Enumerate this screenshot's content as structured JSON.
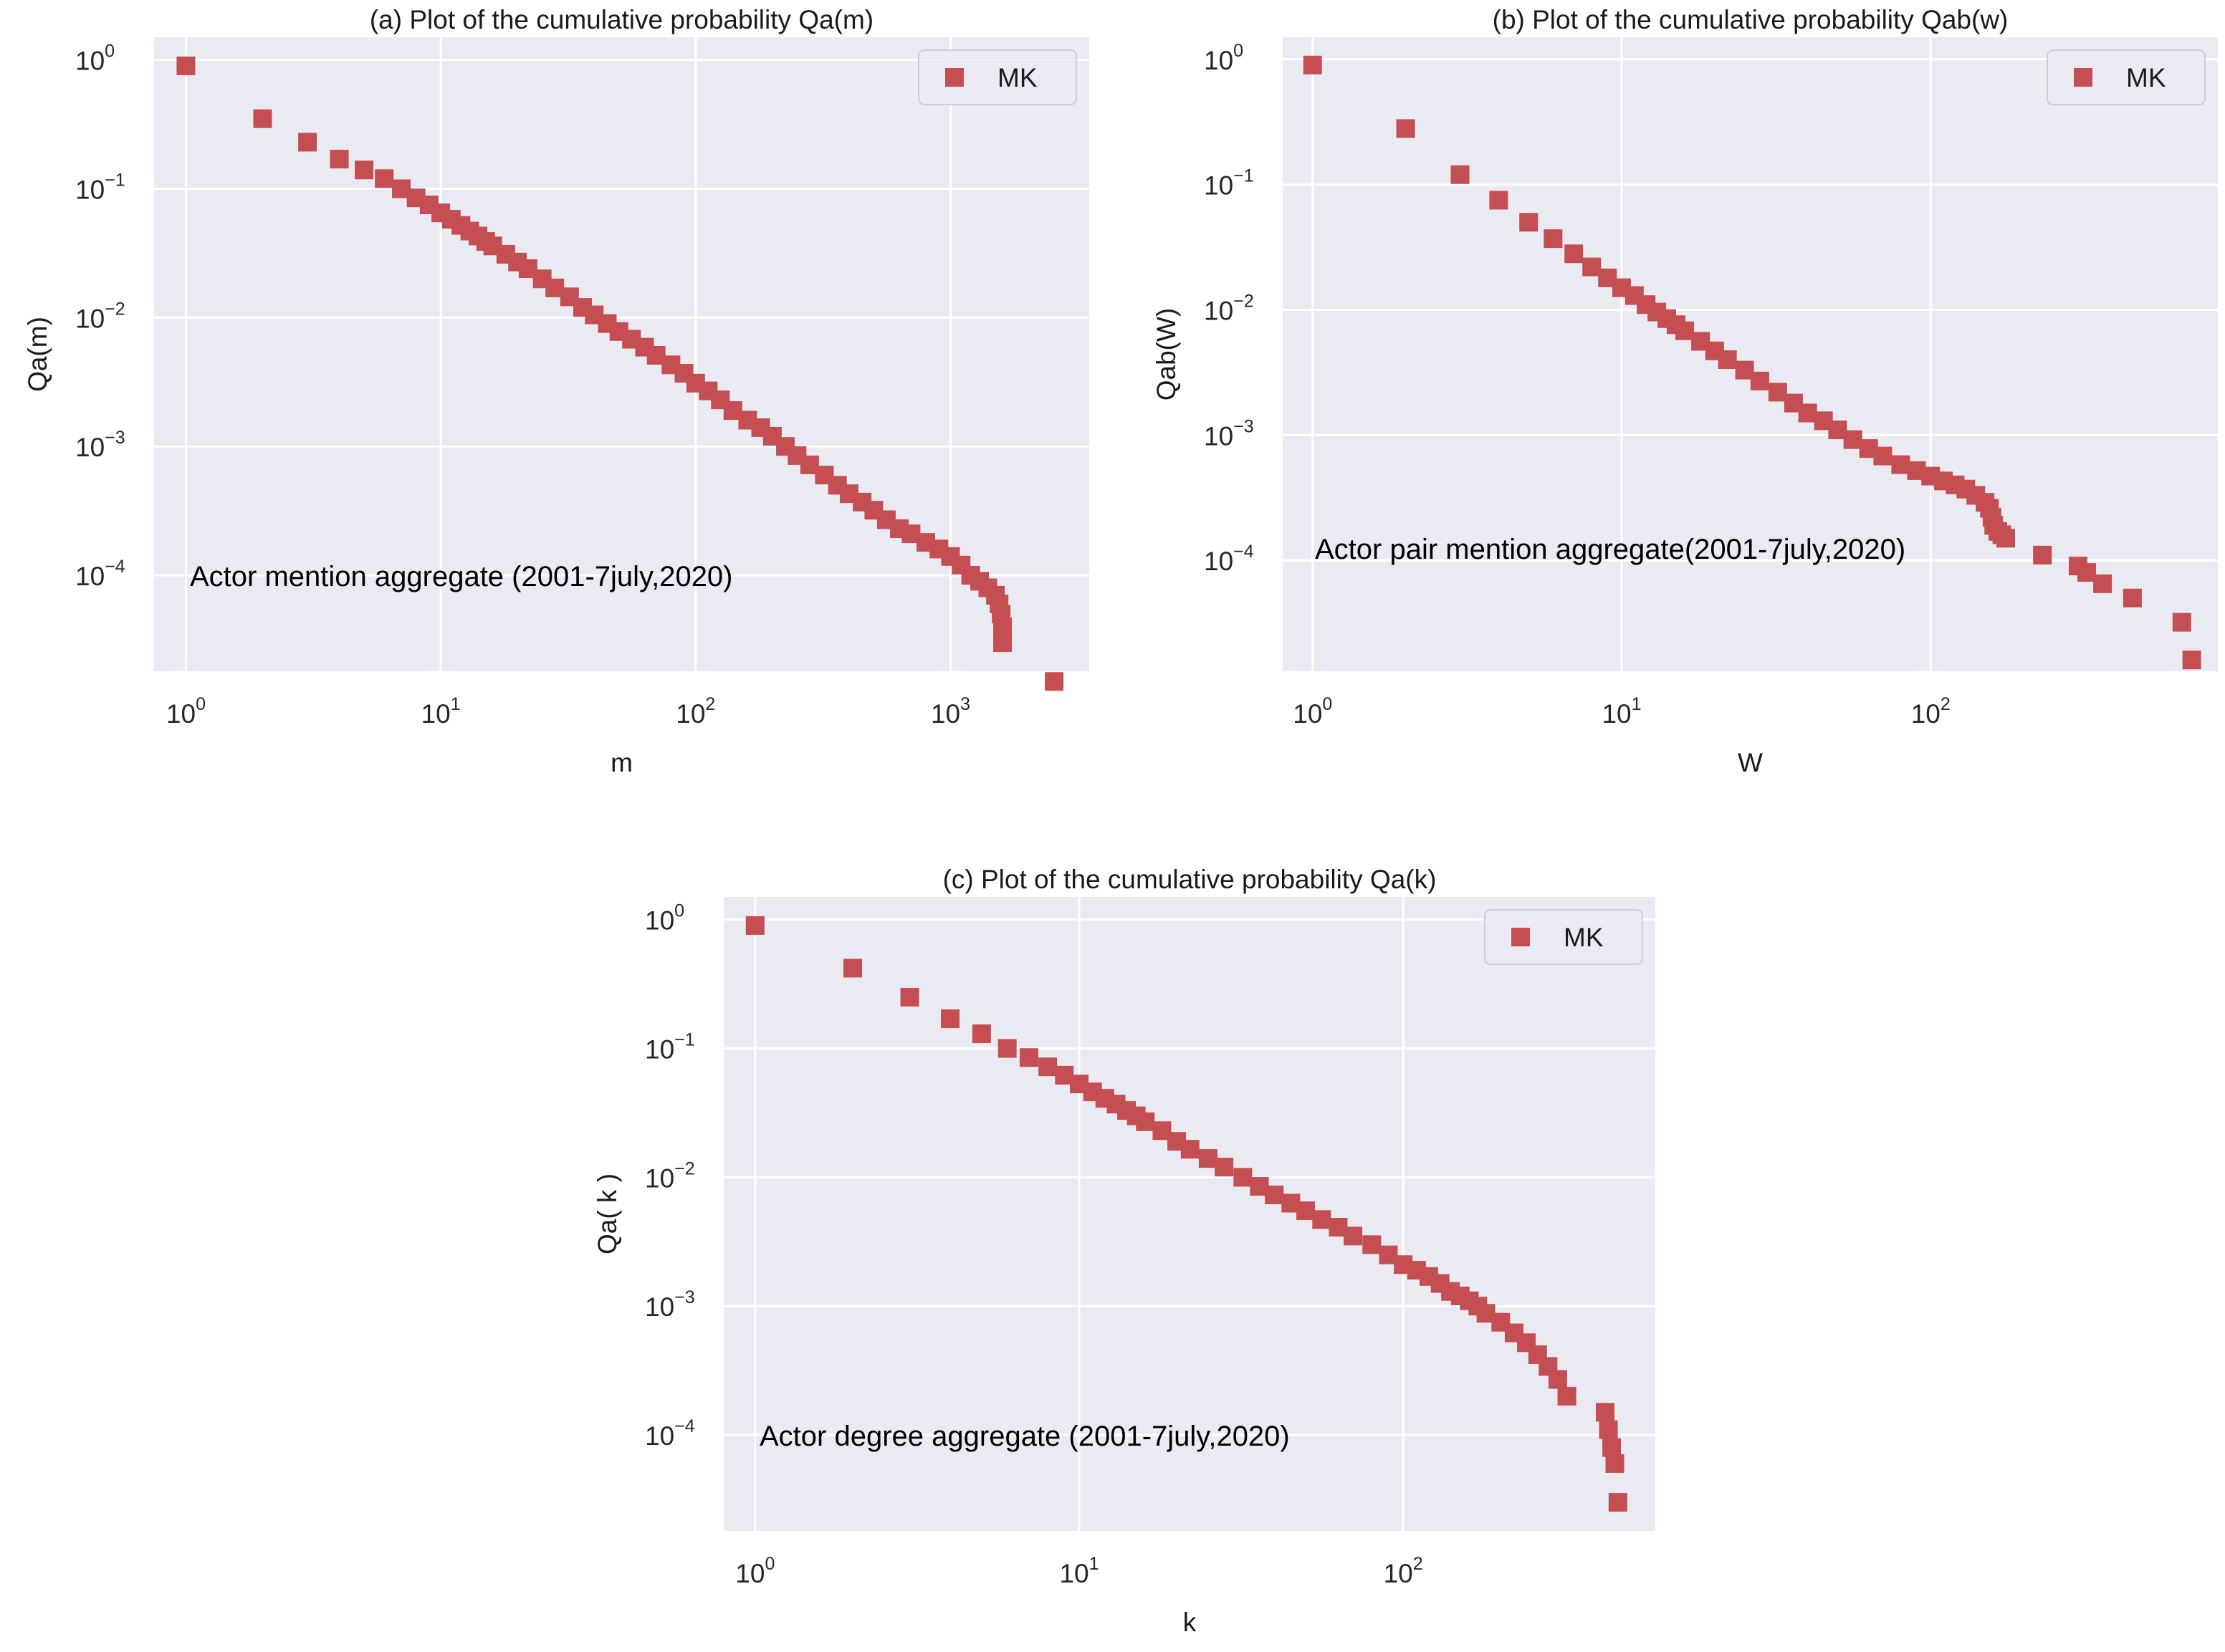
{
  "chart_data": [
    {
      "id": "a",
      "type": "scatter",
      "title": "(a) Plot of the cumulative probability Qa(m)",
      "xlabel": "m",
      "ylabel": "Qa(m)",
      "xscale": "log",
      "yscale": "log",
      "xlim": [
        0.75,
        3500
      ],
      "ylim": [
        1.8e-05,
        1.5
      ],
      "xticks": [
        {
          "base": "10",
          "exp": "0",
          "value": 1
        },
        {
          "base": "10",
          "exp": "1",
          "value": 10
        },
        {
          "base": "10",
          "exp": "2",
          "value": 100
        },
        {
          "base": "10",
          "exp": "3",
          "value": 1000
        }
      ],
      "yticks": [
        {
          "base": "10",
          "exp": "0",
          "value": 1
        },
        {
          "base": "10",
          "exp": "−1",
          "value": 0.1
        },
        {
          "base": "10",
          "exp": "−2",
          "value": 0.01
        },
        {
          "base": "10",
          "exp": "−3",
          "value": 0.001
        },
        {
          "base": "10",
          "exp": "−4",
          "value": 0.0001
        }
      ],
      "legend": {
        "label": "MK",
        "position": "top-right"
      },
      "annotation": "Actor mention aggregate (2001-7july,2020)",
      "series": [
        {
          "name": "MK",
          "marker": "square",
          "color": "#c44e52",
          "x": [
            1,
            2,
            3,
            4,
            5,
            6,
            7,
            8,
            9,
            10,
            11,
            12,
            13,
            14,
            15,
            16,
            18,
            20,
            22,
            25,
            28,
            32,
            36,
            40,
            45,
            50,
            56,
            63,
            70,
            80,
            90,
            100,
            112,
            125,
            140,
            160,
            180,
            200,
            225,
            250,
            280,
            320,
            360,
            400,
            450,
            500,
            560,
            630,
            700,
            800,
            900,
            1000,
            1100,
            1200,
            1300,
            1400,
            1500,
            1550,
            1580,
            1600,
            1600,
            2550
          ],
          "y": [
            0.9,
            0.35,
            0.23,
            0.17,
            0.14,
            0.12,
            0.1,
            0.085,
            0.075,
            0.065,
            0.058,
            0.052,
            0.047,
            0.043,
            0.039,
            0.036,
            0.031,
            0.027,
            0.024,
            0.02,
            0.017,
            0.0145,
            0.012,
            0.0105,
            0.009,
            0.0078,
            0.0068,
            0.0059,
            0.0051,
            0.0043,
            0.0037,
            0.0031,
            0.0027,
            0.0023,
            0.0019,
            0.0016,
            0.0014,
            0.0012,
            0.001,
            0.00085,
            0.00072,
            0.0006,
            0.0005,
            0.00043,
            0.00037,
            0.00032,
            0.00027,
            0.00023,
            0.00021,
            0.00018,
            0.00016,
            0.00014,
            0.00012,
            0.0001,
            9e-05,
            8e-05,
            7e-05,
            6e-05,
            5e-05,
            4e-05,
            3e-05,
            1.5e-05
          ]
        }
      ]
    },
    {
      "id": "b",
      "type": "scatter",
      "title": "(b) Plot of the cumulative probability Qab(w)",
      "xlabel": "W",
      "ylabel": "Qab(W)",
      "xscale": "log",
      "yscale": "log",
      "xlim": [
        0.8,
        850
      ],
      "ylim": [
        1.3e-05,
        1.5
      ],
      "xticks": [
        {
          "base": "10",
          "exp": "0",
          "value": 1
        },
        {
          "base": "10",
          "exp": "1",
          "value": 10
        },
        {
          "base": "10",
          "exp": "2",
          "value": 100
        }
      ],
      "yticks": [
        {
          "base": "10",
          "exp": "0",
          "value": 1
        },
        {
          "base": "10",
          "exp": "−1",
          "value": 0.1
        },
        {
          "base": "10",
          "exp": "−2",
          "value": 0.01
        },
        {
          "base": "10",
          "exp": "−3",
          "value": 0.001
        },
        {
          "base": "10",
          "exp": "−4",
          "value": 0.0001
        }
      ],
      "legend": {
        "label": "MK",
        "position": "top-right"
      },
      "annotation": "Actor pair mention aggregate(2001-7july,2020)",
      "series": [
        {
          "name": "MK",
          "marker": "square",
          "color": "#c44e52",
          "x": [
            1,
            2,
            3,
            4,
            5,
            6,
            7,
            8,
            9,
            10,
            11,
            12,
            13,
            14,
            15,
            16,
            18,
            20,
            22,
            25,
            28,
            32,
            36,
            40,
            45,
            50,
            56,
            63,
            70,
            80,
            90,
            100,
            110,
            120,
            130,
            140,
            150,
            155,
            158,
            160,
            165,
            170,
            175,
            230,
            300,
            320,
            360,
            450,
            650,
            700
          ],
          "y": [
            0.9,
            0.28,
            0.12,
            0.075,
            0.05,
            0.037,
            0.028,
            0.022,
            0.018,
            0.015,
            0.013,
            0.011,
            0.0096,
            0.0085,
            0.0076,
            0.0068,
            0.0056,
            0.0047,
            0.004,
            0.0033,
            0.0027,
            0.0022,
            0.0018,
            0.0015,
            0.0013,
            0.0011,
            0.00092,
            0.00078,
            0.00068,
            0.00058,
            0.00052,
            0.00047,
            0.00043,
            0.0004,
            0.00037,
            0.00033,
            0.00029,
            0.00026,
            0.00022,
            0.00019,
            0.00017,
            0.00016,
            0.00015,
            0.00011,
            9e-05,
            8e-05,
            6.5e-05,
            5e-05,
            3.2e-05,
            1.6e-05
          ]
        }
      ]
    },
    {
      "id": "c",
      "type": "scatter",
      "title": "(c) Plot of the cumulative probability Qa(k)",
      "xlabel": "k",
      "ylabel": "Qa( k )",
      "xscale": "log",
      "yscale": "log",
      "xlim": [
        0.8,
        600
      ],
      "ylim": [
        1.8e-05,
        1.5
      ],
      "xticks": [
        {
          "base": "10",
          "exp": "0",
          "value": 1
        },
        {
          "base": "10",
          "exp": "1",
          "value": 10
        },
        {
          "base": "10",
          "exp": "2",
          "value": 100
        }
      ],
      "yticks": [
        {
          "base": "10",
          "exp": "0",
          "value": 1
        },
        {
          "base": "10",
          "exp": "−1",
          "value": 0.1
        },
        {
          "base": "10",
          "exp": "−2",
          "value": 0.01
        },
        {
          "base": "10",
          "exp": "−3",
          "value": 0.001
        },
        {
          "base": "10",
          "exp": "−4",
          "value": 0.0001
        }
      ],
      "legend": {
        "label": "MK",
        "position": "top-right"
      },
      "annotation": "Actor degree aggregate (2001-7july,2020)",
      "series": [
        {
          "name": "MK",
          "marker": "square",
          "color": "#c44e52",
          "x": [
            1,
            2,
            3,
            4,
            5,
            6,
            7,
            8,
            9,
            10,
            11,
            12,
            13,
            14,
            15,
            16,
            18,
            20,
            22,
            25,
            28,
            32,
            36,
            40,
            45,
            50,
            56,
            63,
            70,
            80,
            90,
            100,
            110,
            120,
            130,
            140,
            150,
            160,
            170,
            180,
            200,
            220,
            240,
            260,
            280,
            300,
            320,
            420,
            430,
            440,
            450,
            460
          ],
          "y": [
            0.9,
            0.42,
            0.25,
            0.17,
            0.13,
            0.1,
            0.085,
            0.072,
            0.062,
            0.053,
            0.046,
            0.041,
            0.037,
            0.033,
            0.03,
            0.027,
            0.023,
            0.019,
            0.0165,
            0.014,
            0.012,
            0.01,
            0.0085,
            0.0073,
            0.0063,
            0.0055,
            0.0047,
            0.0041,
            0.0035,
            0.003,
            0.0025,
            0.0021,
            0.0019,
            0.0017,
            0.0015,
            0.0013,
            0.0012,
            0.0011,
            0.001,
            0.00088,
            0.00075,
            0.00062,
            0.00052,
            0.00042,
            0.00034,
            0.00027,
            0.0002,
            0.00015,
            0.00011,
            8e-05,
            6e-05,
            3e-05
          ]
        }
      ]
    }
  ]
}
